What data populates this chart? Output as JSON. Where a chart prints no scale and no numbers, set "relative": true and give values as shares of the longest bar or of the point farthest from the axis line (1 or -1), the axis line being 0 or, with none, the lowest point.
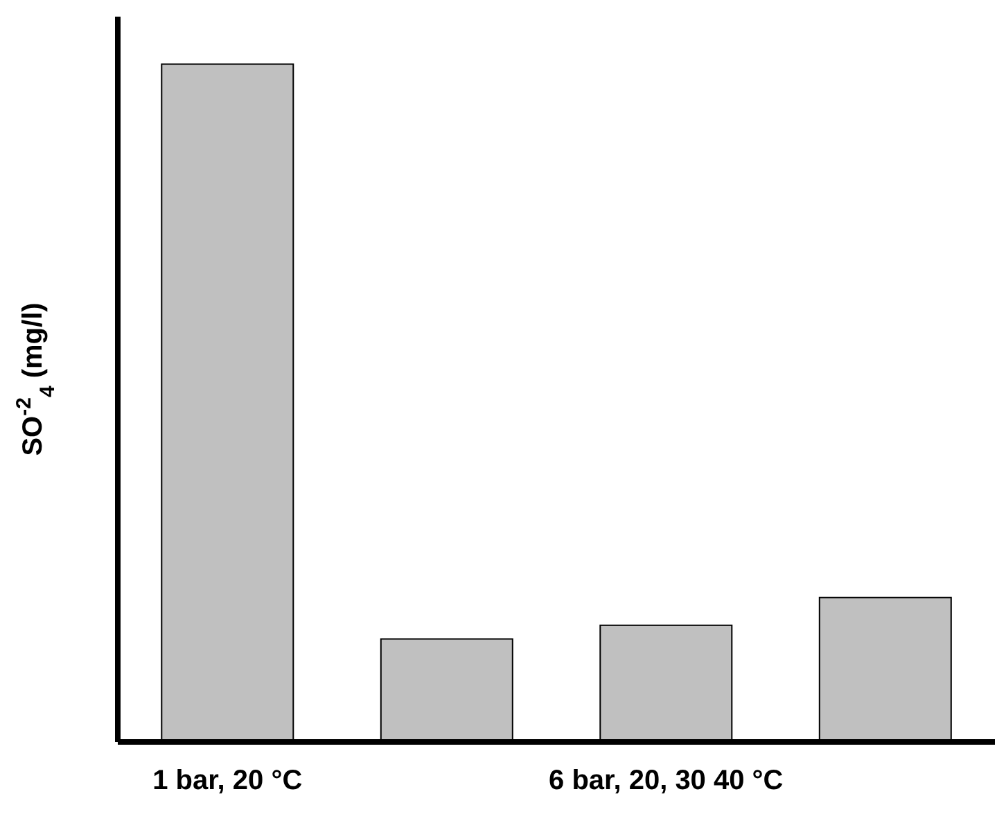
{
  "chart_data": {
    "type": "bar",
    "relative": true,
    "ylabel": "SO$^{-2}$$_{4}$ (mg/l)",
    "categories": [
      "1 bar, 20 °C",
      null,
      "6 bar, 20, 30 40 °C",
      null
    ],
    "values": [
      1,
      0.152,
      0.172,
      0.213
    ],
    "color": "#c0c0c0"
  }
}
